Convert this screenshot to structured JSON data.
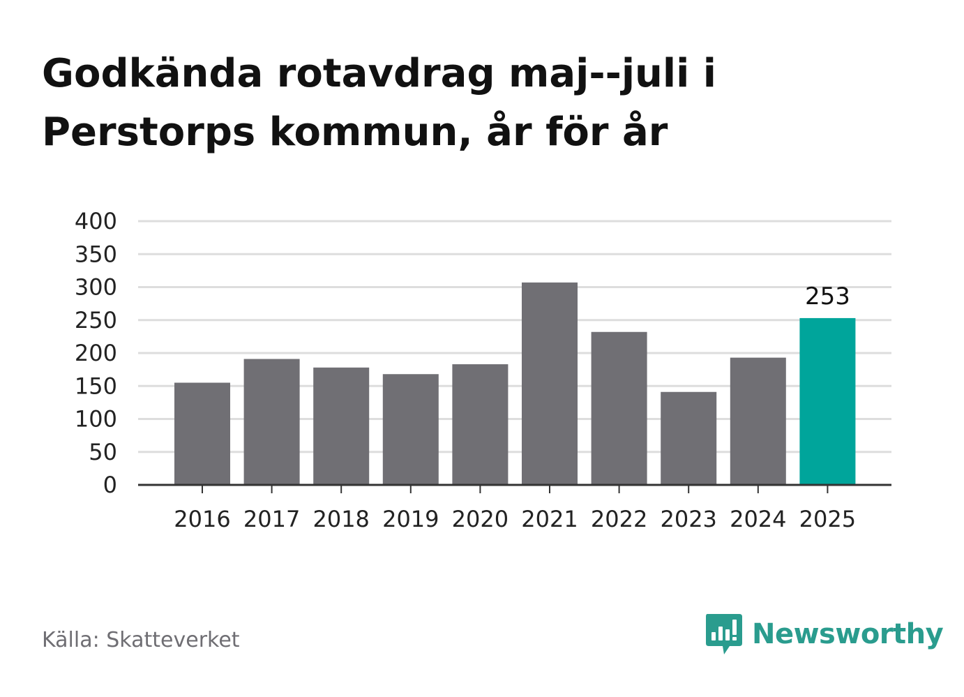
{
  "title": "Godkända rotavdrag maj--juli i Perstorps kommun, år för år",
  "source": "Källa: Skatteverket",
  "brand": {
    "name": "Newsworthy",
    "icon": "newsworthy-logo-icon",
    "color": "#2a9c8e"
  },
  "colors": {
    "bar": "#706f74",
    "highlight": "#00a59b",
    "grid": "#dddddd",
    "axis": "#333333"
  },
  "chart_data": {
    "type": "bar",
    "title": "Godkända rotavdrag maj--juli i Perstorps kommun, år för år",
    "categories": [
      "2016",
      "2017",
      "2018",
      "2019",
      "2020",
      "2021",
      "2022",
      "2023",
      "2024",
      "2025"
    ],
    "values": [
      155,
      191,
      178,
      168,
      183,
      307,
      232,
      141,
      193,
      253
    ],
    "highlight_index": 9,
    "data_labels": [
      {
        "index": 9,
        "text": "253"
      }
    ],
    "yticks": [
      0,
      50,
      100,
      150,
      200,
      250,
      300,
      350,
      400
    ],
    "ylim": [
      0,
      400
    ],
    "xlabel": "",
    "ylabel": "",
    "grid": true,
    "legend": "none"
  }
}
